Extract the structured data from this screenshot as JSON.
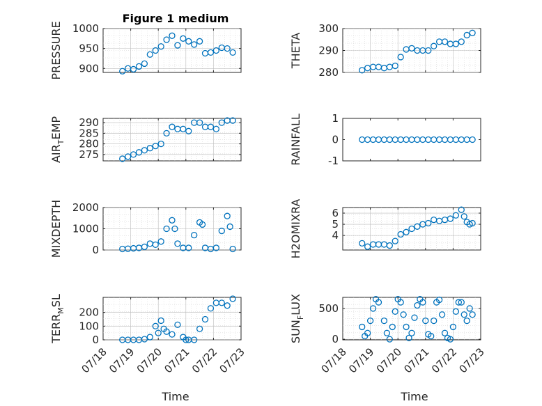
{
  "figure_title": "Figure 1 medium",
  "x_tick_labels": [
    "07/18",
    "07/19",
    "07/20",
    "07/21",
    "07/22",
    "07/23"
  ],
  "x_label": "Time",
  "chart_data": [
    {
      "type": "scatter",
      "ylabel": "PRESSURE",
      "ylim": [
        890,
        1000
      ],
      "yticks": [
        900,
        950,
        1000
      ],
      "grid": true,
      "xlim": [
        0,
        5
      ],
      "x": [
        0.7,
        0.9,
        1.1,
        1.3,
        1.5,
        1.7,
        1.9,
        2.1,
        2.3,
        2.5,
        2.7,
        2.9,
        3.1,
        3.3,
        3.5,
        3.7,
        3.9,
        4.1,
        4.3,
        4.5,
        4.7
      ],
      "y": [
        893,
        900,
        898,
        905,
        912,
        935,
        945,
        955,
        972,
        982,
        958,
        975,
        968,
        960,
        968,
        938,
        940,
        945,
        952,
        950,
        940
      ]
    },
    {
      "type": "scatter",
      "ylabel": "THETA",
      "ylim": [
        280,
        300
      ],
      "yticks": [
        280,
        290,
        300
      ],
      "grid": true,
      "xlim": [
        0,
        5
      ],
      "x": [
        0.7,
        0.9,
        1.1,
        1.3,
        1.5,
        1.7,
        1.9,
        2.1,
        2.3,
        2.5,
        2.7,
        2.9,
        3.1,
        3.3,
        3.5,
        3.7,
        3.9,
        4.1,
        4.3,
        4.5,
        4.7
      ],
      "y": [
        281,
        282,
        282.5,
        282.5,
        282,
        282.5,
        283,
        287,
        290.5,
        291,
        290,
        290,
        290,
        292,
        294,
        294,
        293,
        293,
        294,
        297,
        298
      ]
    },
    {
      "type": "scatter",
      "ylabel": "AIR_TEMP",
      "ylim": [
        272,
        292
      ],
      "yticks": [
        275,
        280,
        285,
        290
      ],
      "grid": true,
      "xlim": [
        0,
        5
      ],
      "x": [
        0.7,
        0.9,
        1.1,
        1.3,
        1.5,
        1.7,
        1.9,
        2.1,
        2.3,
        2.5,
        2.7,
        2.9,
        3.1,
        3.3,
        3.5,
        3.7,
        3.9,
        4.1,
        4.3,
        4.5,
        4.7
      ],
      "y": [
        273,
        274,
        275,
        276,
        277,
        278,
        279,
        280,
        285,
        288,
        287,
        287,
        286,
        290,
        290,
        288,
        288,
        287,
        290,
        291,
        291
      ]
    },
    {
      "type": "scatter",
      "ylabel": "RAINFALL",
      "ylim": [
        -1,
        1
      ],
      "yticks": [
        -1,
        0,
        1
      ],
      "grid": false,
      "xlim": [
        0,
        5
      ],
      "x": [
        0.7,
        0.9,
        1.1,
        1.3,
        1.5,
        1.7,
        1.9,
        2.1,
        2.3,
        2.5,
        2.7,
        2.9,
        3.1,
        3.3,
        3.5,
        3.7,
        3.9,
        4.1,
        4.3,
        4.5,
        4.7
      ],
      "y": [
        0,
        0,
        0,
        0,
        0,
        0,
        0,
        0,
        0,
        0,
        0,
        0,
        0,
        0,
        0,
        0,
        0,
        0,
        0,
        0,
        0
      ]
    },
    {
      "type": "scatter",
      "ylabel": "MIXDEPTH",
      "ylim": [
        0,
        2000
      ],
      "yticks": [
        0,
        1000,
        2000
      ],
      "grid": true,
      "xlim": [
        0,
        5
      ],
      "x": [
        0.7,
        0.9,
        1.1,
        1.3,
        1.5,
        1.7,
        1.9,
        2.1,
        2.3,
        2.5,
        2.6,
        2.7,
        2.9,
        3.1,
        3.3,
        3.5,
        3.6,
        3.7,
        3.9,
        4.1,
        4.3,
        4.5,
        4.6,
        4.7
      ],
      "y": [
        50,
        60,
        80,
        100,
        150,
        300,
        250,
        400,
        1000,
        1400,
        1000,
        300,
        100,
        100,
        700,
        1300,
        1200,
        100,
        50,
        100,
        900,
        1600,
        1100,
        50
      ]
    },
    {
      "type": "scatter",
      "ylabel": "H2OMIXRA",
      "ylim": [
        2.7,
        6.5
      ],
      "yticks": [
        4,
        5,
        6
      ],
      "grid": true,
      "xlim": [
        0,
        5
      ],
      "x": [
        0.7,
        0.9,
        1.1,
        1.3,
        1.5,
        1.7,
        1.9,
        2.1,
        2.3,
        2.5,
        2.7,
        2.9,
        3.1,
        3.3,
        3.5,
        3.7,
        3.9,
        4.1,
        4.3,
        4.4,
        4.5,
        4.6,
        4.7
      ],
      "y": [
        3.3,
        3.0,
        3.2,
        3.2,
        3.2,
        3.1,
        3.5,
        4.1,
        4.3,
        4.6,
        4.8,
        5.0,
        5.1,
        5.4,
        5.3,
        5.4,
        5.5,
        5.8,
        6.3,
        5.7,
        5.2,
        5.0,
        5.1
      ]
    },
    {
      "type": "scatter",
      "ylabel": "TERR_MSL",
      "ylim": [
        0,
        310
      ],
      "yticks": [
        0,
        100,
        200
      ],
      "grid": true,
      "xlim": [
        0,
        5
      ],
      "x": [
        0.7,
        0.9,
        1.1,
        1.3,
        1.5,
        1.7,
        1.9,
        2.0,
        2.1,
        2.2,
        2.3,
        2.5,
        2.7,
        2.9,
        3.0,
        3.1,
        3.3,
        3.5,
        3.7,
        3.9,
        4.1,
        4.3,
        4.5,
        4.7
      ],
      "y": [
        0,
        0,
        0,
        0,
        5,
        20,
        100,
        50,
        140,
        80,
        60,
        40,
        110,
        20,
        0,
        0,
        0,
        80,
        150,
        230,
        270,
        270,
        250,
        300
      ]
    },
    {
      "type": "scatter",
      "ylabel": "SUN_FLUX",
      "ylim": [
        -10,
        680
      ],
      "yticks": [
        0,
        500
      ],
      "grid": true,
      "xlim": [
        0,
        5
      ],
      "x": [
        0.7,
        0.8,
        0.9,
        1.0,
        1.1,
        1.2,
        1.3,
        1.5,
        1.6,
        1.7,
        1.8,
        1.9,
        2.0,
        2.1,
        2.2,
        2.3,
        2.4,
        2.5,
        2.6,
        2.7,
        2.8,
        2.9,
        3.0,
        3.1,
        3.2,
        3.3,
        3.4,
        3.5,
        3.6,
        3.7,
        3.8,
        3.9,
        4.0,
        4.1,
        4.2,
        4.3,
        4.4,
        4.5,
        4.6,
        4.7
      ],
      "y": [
        200,
        50,
        100,
        300,
        500,
        650,
        600,
        300,
        100,
        0,
        200,
        450,
        650,
        600,
        400,
        200,
        20,
        100,
        350,
        550,
        650,
        600,
        300,
        80,
        50,
        300,
        600,
        640,
        400,
        100,
        20,
        0,
        200,
        450,
        600,
        600,
        400,
        300,
        500,
        400
      ]
    }
  ]
}
